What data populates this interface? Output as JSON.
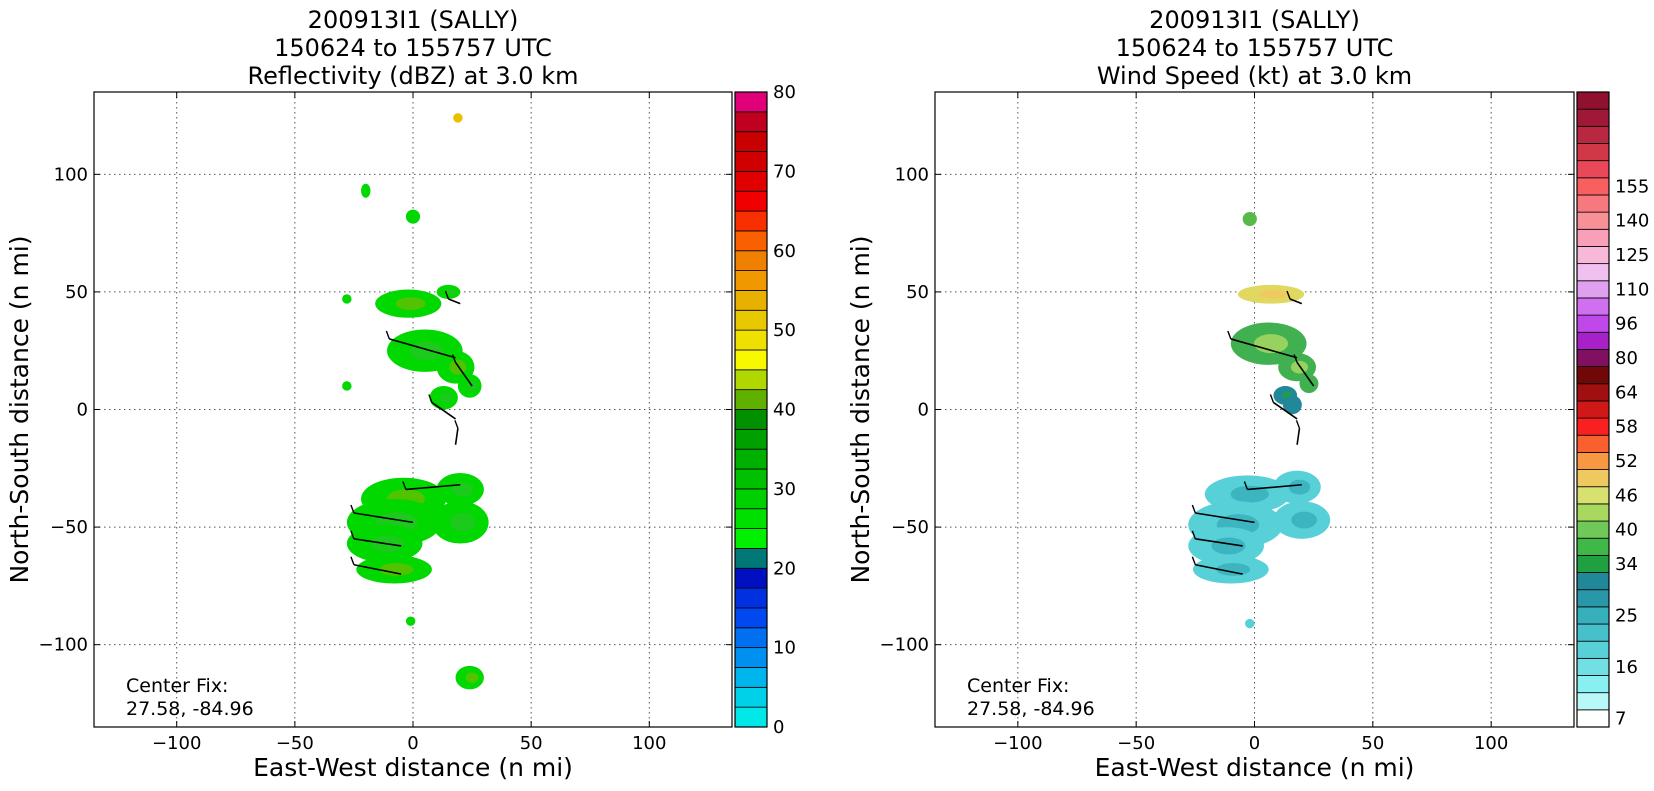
{
  "chart_data": [
    {
      "type": "heatmap",
      "title": [
        "200913I1 (SALLY)",
        "150624 to 155757 UTC",
        "Reflectivity (dBZ) at 3.0 km"
      ],
      "xlabel": "East-West distance (n mi)",
      "ylabel": "North-South distance (n mi)",
      "xlim": [
        -135,
        135
      ],
      "ylim": [
        -135,
        135
      ],
      "xticks": [
        -100,
        -50,
        0,
        50,
        100
      ],
      "yticks": [
        100,
        50,
        0,
        -50,
        -100
      ],
      "tick_labels_x": [
        "−100",
        "−50",
        "0",
        "50",
        "100"
      ],
      "tick_labels_y": [
        "100",
        "50",
        "0",
        "−50",
        "−100"
      ],
      "grid": true,
      "annotation": [
        "Center Fix:",
        "27.58, -84.96"
      ],
      "colorbar": {
        "vmin": 0,
        "vmax": 80,
        "step": 2.5,
        "ticks": [
          0,
          10,
          20,
          30,
          40,
          50,
          60,
          70,
          80
        ],
        "colors": [
          "#00e8e8",
          "#00d0e8",
          "#00b4ee",
          "#0090f0",
          "#0070f0",
          "#0048f0",
          "#0030e0",
          "#0010c0",
          "#007878",
          "#00f000",
          "#00e000",
          "#00d000",
          "#00c000",
          "#00b000",
          "#00a000",
          "#009000",
          "#60b000",
          "#b0d800",
          "#f8f800",
          "#f0e000",
          "#e8c800",
          "#e8b000",
          "#f09800",
          "#f08000",
          "#f86000",
          "#f83000",
          "#f00000",
          "#e00000",
          "#d00000",
          "#c80000",
          "#c00020",
          "#e00078",
          "#f000c0",
          "#e820e8",
          "#c040d8",
          "#a048c8",
          "#8040b0",
          "#402050"
        ],
        "over_color": "#000000"
      }
    },
    {
      "type": "heatmap",
      "title": [
        "200913I1 (SALLY)",
        "150624 to 155757 UTC",
        "Wind Speed (kt) at 3.0 km"
      ],
      "xlabel": "East-West distance (n mi)",
      "ylabel": "North-South distance (n mi)",
      "xlim": [
        -135,
        135
      ],
      "ylim": [
        -135,
        135
      ],
      "xticks": [
        -100,
        -50,
        0,
        50,
        100
      ],
      "yticks": [
        100,
        50,
        0,
        -50,
        -100
      ],
      "tick_labels_x": [
        "−100",
        "−50",
        "0",
        "50",
        "100"
      ],
      "tick_labels_y": [
        "100",
        "50",
        "0",
        "−50",
        "−100"
      ],
      "grid": true,
      "annotation": [
        "Center Fix:",
        "27.58, -84.96"
      ],
      "colorbar": {
        "levels": [
          7,
          10,
          13,
          16,
          19,
          22,
          25,
          28,
          31,
          34,
          37,
          40,
          43,
          46,
          49,
          52,
          55,
          58,
          61,
          64,
          72,
          80,
          88,
          96,
          103,
          110,
          117,
          125,
          132,
          140,
          147,
          155,
          160
        ],
        "ticks": [
          7,
          16,
          25,
          34,
          40,
          46,
          52,
          58,
          64,
          80,
          96,
          110,
          125,
          140,
          155
        ],
        "colors": [
          "#ffffff",
          "#b8f8f8",
          "#88f0f0",
          "#70e0e4",
          "#58d0d8",
          "#48c0cc",
          "#38b0bc",
          "#2898a8",
          "#208898",
          "#20a040",
          "#40b848",
          "#70c858",
          "#a8d860",
          "#d8e070",
          "#f0c860",
          "#f89840",
          "#f86030",
          "#f82020",
          "#d01818",
          "#a01010",
          "#700808",
          "#801060",
          "#a820c8",
          "#c048e8",
          "#d070f0",
          "#e0a0f0",
          "#f0c0f0",
          "#f8b8d8",
          "#f8a0b8",
          "#f89098",
          "#f87880",
          "#f86060",
          "#e84858",
          "#d03848",
          "#b82840",
          "#a01838",
          "#901030"
        ]
      }
    }
  ]
}
